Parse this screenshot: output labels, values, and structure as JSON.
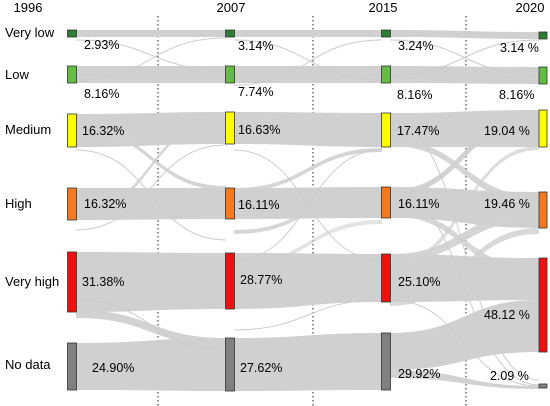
{
  "chart_data": {
    "type": "sankey",
    "years": [
      "1996",
      "2007",
      "2015",
      "2020"
    ],
    "categories": [
      {
        "name": "Very low",
        "color": "#2e7d32"
      },
      {
        "name": "Low",
        "color": "#66bb44"
      },
      {
        "name": "Medium",
        "color": "#ffff00"
      },
      {
        "name": "High",
        "color": "#f47920"
      },
      {
        "name": "Very high",
        "color": "#ee1111"
      },
      {
        "name": "No data",
        "color": "#808080"
      }
    ],
    "values": [
      [
        2.93,
        8.16,
        16.32,
        16.32,
        31.38,
        24.9
      ],
      [
        3.14,
        7.74,
        16.63,
        16.11,
        28.77,
        27.62
      ],
      [
        3.24,
        8.16,
        17.47,
        16.11,
        25.1,
        29.92
      ],
      [
        3.14,
        8.16,
        19.04,
        19.46,
        48.12,
        2.09
      ]
    ],
    "labels": [
      [
        "2.93%",
        "8.16%",
        "16.32%",
        "16.32%",
        "31.38%",
        "24.90%"
      ],
      [
        "3.14%",
        "7.74%",
        "16.63%",
        "16.11%",
        "28.77%",
        "27.62%"
      ],
      [
        "3.24%",
        "8.16%",
        "17.47%",
        "16.11%",
        "25.10%",
        "29.92%"
      ],
      [
        "3.14 %",
        "8.16%",
        "19.04 %",
        "19.46 %",
        "48.12 %",
        "2.09 %"
      ]
    ],
    "flow_color": "#d0d0d0",
    "grid": "dotted vertical separators between years"
  }
}
